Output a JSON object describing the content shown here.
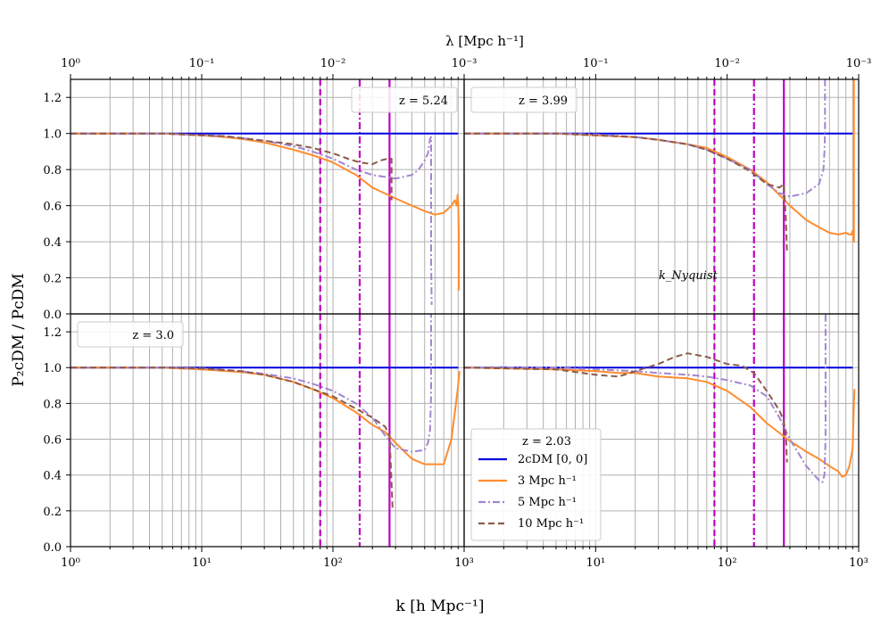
{
  "figure": {
    "xlabel": "k [h Mpc⁻¹]",
    "ylabel": "P₂cDM / PᴄDM",
    "top_xlabel": "λ [Mpc h⁻¹]",
    "knyquist_label": "k_Nyquist"
  },
  "chart_data": {
    "type": "line",
    "xscale": "log",
    "xlim": [
      1,
      1000
    ],
    "ylim": [
      0,
      1.3
    ],
    "xticks": [
      "10⁰",
      "10¹",
      "10²",
      "10³"
    ],
    "top_xticks": [
      "10⁰",
      "10⁻¹",
      "10⁻²",
      "10⁻³"
    ],
    "yticks": [
      "0.0",
      "0.2",
      "0.4",
      "0.6",
      "0.8",
      "1.0",
      "1.2"
    ],
    "grid": true,
    "vlines": [
      {
        "x": 80,
        "style": "dashed",
        "color": "#c000c0"
      },
      {
        "x": 160,
        "style": "dashdot",
        "color": "#c000c0"
      },
      {
        "x": 270,
        "style": "solid",
        "color": "#c000c0"
      }
    ],
    "legend": {
      "title": "z = 2.03",
      "entries": [
        {
          "label": "2cDM [0, 0]",
          "color": "#0000dd",
          "style": "solid"
        },
        {
          "label": "3 Mpc h⁻¹",
          "color": "#ff8c2e",
          "style": "solid"
        },
        {
          "label": "5 Mpc h⁻¹",
          "color": "#a285d0",
          "style": "dashdot"
        },
        {
          "label": "10 Mpc h⁻¹",
          "color": "#8c5a4a",
          "style": "dashed"
        }
      ]
    },
    "panels": [
      {
        "redshift_label": "z = 5.24",
        "series": [
          {
            "name": "2cDM [0, 0]",
            "x": [
              1,
              900
            ],
            "y": [
              1.0,
              1.0
            ]
          },
          {
            "name": "3 Mpc h⁻¹",
            "x": [
              1,
              5,
              10,
              15,
              20,
              30,
              50,
              70,
              100,
              150,
              200,
              300,
              400,
              500,
              600,
              700,
              800,
              850,
              880,
              890,
              900,
              910,
              910
            ],
            "y": [
              1.0,
              1.0,
              0.99,
              0.98,
              0.97,
              0.95,
              0.91,
              0.88,
              0.84,
              0.77,
              0.7,
              0.64,
              0.6,
              0.57,
              0.55,
              0.56,
              0.6,
              0.63,
              0.6,
              0.66,
              0.62,
              0.45,
              0.13
            ]
          },
          {
            "name": "5 Mpc h⁻¹",
            "x": [
              1,
              5,
              10,
              15,
              20,
              30,
              50,
              70,
              100,
              150,
              200,
              300,
              400,
              450,
              500,
              530,
              550,
              560,
              560,
              565
            ],
            "y": [
              1.0,
              1.0,
              0.99,
              0.985,
              0.975,
              0.96,
              0.93,
              0.9,
              0.86,
              0.8,
              0.77,
              0.75,
              0.77,
              0.8,
              0.85,
              0.89,
              0.97,
              0.98,
              0.3,
              0.05
            ]
          },
          {
            "name": "10 Mpc h⁻¹",
            "x": [
              1,
              5,
              10,
              15,
              20,
              30,
              50,
              70,
              100,
              130,
              160,
              200,
              230,
              260,
              280,
              280
            ],
            "y": [
              1.0,
              1.0,
              0.99,
              0.985,
              0.975,
              0.96,
              0.94,
              0.92,
              0.89,
              0.86,
              0.84,
              0.83,
              0.85,
              0.86,
              0.86,
              0.63
            ]
          }
        ]
      },
      {
        "redshift_label": "z = 3.99",
        "series": [
          {
            "name": "2cDM [0, 0]",
            "x": [
              1,
              900
            ],
            "y": [
              1.0,
              1.0
            ]
          },
          {
            "name": "3 Mpc h⁻¹",
            "x": [
              1,
              5,
              10,
              20,
              30,
              50,
              70,
              100,
              150,
              200,
              300,
              400,
              500,
              600,
              700,
              800,
              850,
              880,
              900,
              910,
              920,
              920
            ],
            "y": [
              1.0,
              1.0,
              0.99,
              0.98,
              0.965,
              0.94,
              0.92,
              0.87,
              0.8,
              0.73,
              0.6,
              0.52,
              0.48,
              0.45,
              0.44,
              0.45,
              0.44,
              0.44,
              0.46,
              0.43,
              0.4,
              1.3
            ]
          },
          {
            "name": "5 Mpc h⁻¹",
            "x": [
              1,
              5,
              10,
              20,
              30,
              50,
              70,
              100,
              150,
              200,
              250,
              300,
              400,
              500,
              540,
              550,
              555,
              555
            ],
            "y": [
              1.0,
              1.0,
              0.995,
              0.98,
              0.965,
              0.94,
              0.91,
              0.86,
              0.8,
              0.72,
              0.67,
              0.65,
              0.67,
              0.72,
              0.8,
              0.9,
              1.0,
              1.3
            ]
          },
          {
            "name": "10 Mpc h⁻¹",
            "x": [
              1,
              5,
              10,
              20,
              30,
              50,
              70,
              100,
              150,
              200,
              250,
              270,
              280,
              285
            ],
            "y": [
              1.0,
              1.0,
              0.99,
              0.98,
              0.965,
              0.94,
              0.91,
              0.86,
              0.79,
              0.72,
              0.7,
              0.72,
              0.52,
              0.35
            ]
          }
        ]
      },
      {
        "redshift_label": "z = 3.0",
        "series": [
          {
            "name": "2cDM [0, 0]",
            "x": [
              1,
              900
            ],
            "y": [
              1.0,
              1.0
            ]
          },
          {
            "name": "3 Mpc h⁻¹",
            "x": [
              1,
              5,
              10,
              20,
              30,
              50,
              70,
              100,
              150,
              200,
              250,
              300,
              400,
              500,
              600,
              700,
              800,
              850,
              900,
              920
            ],
            "y": [
              1.0,
              1.0,
              0.99,
              0.975,
              0.96,
              0.92,
              0.88,
              0.83,
              0.75,
              0.68,
              0.64,
              0.58,
              0.49,
              0.46,
              0.46,
              0.46,
              0.6,
              0.75,
              0.9,
              0.98
            ]
          },
          {
            "name": "5 Mpc h⁻¹",
            "x": [
              1,
              5,
              10,
              20,
              30,
              50,
              70,
              100,
              150,
              200,
              250,
              300,
              400,
              500,
              530,
              550,
              560,
              560
            ],
            "y": [
              1.0,
              1.0,
              0.995,
              0.98,
              0.965,
              0.94,
              0.91,
              0.87,
              0.8,
              0.72,
              0.62,
              0.55,
              0.53,
              0.54,
              0.58,
              0.65,
              0.85,
              1.3
            ]
          },
          {
            "name": "10 Mpc h⁻¹",
            "x": [
              1,
              5,
              10,
              20,
              30,
              50,
              70,
              100,
              150,
              200,
              250,
              270,
              280,
              285
            ],
            "y": [
              1.0,
              1.0,
              0.995,
              0.98,
              0.96,
              0.92,
              0.88,
              0.84,
              0.77,
              0.72,
              0.67,
              0.62,
              0.35,
              0.2
            ]
          }
        ]
      },
      {
        "redshift_label": "z = 2.03",
        "series": [
          {
            "name": "2cDM [0, 0]",
            "x": [
              1,
              900
            ],
            "y": [
              1.0,
              1.0
            ]
          },
          {
            "name": "3 Mpc h⁻¹",
            "x": [
              1,
              5,
              10,
              15,
              20,
              30,
              50,
              70,
              100,
              150,
              200,
              300,
              400,
              500,
              600,
              700,
              750,
              800,
              850,
              900,
              920,
              930
            ],
            "y": [
              1.0,
              0.99,
              0.98,
              0.97,
              0.97,
              0.95,
              0.94,
              0.92,
              0.87,
              0.78,
              0.69,
              0.59,
              0.53,
              0.49,
              0.45,
              0.42,
              0.39,
              0.4,
              0.45,
              0.55,
              0.8,
              0.88
            ]
          },
          {
            "name": "5 Mpc h⁻¹",
            "x": [
              1,
              5,
              10,
              20,
              30,
              50,
              70,
              100,
              150,
              200,
              250,
              300,
              400,
              500,
              530,
              550,
              560,
              560
            ],
            "y": [
              1.0,
              1.0,
              0.99,
              0.98,
              0.97,
              0.96,
              0.95,
              0.93,
              0.9,
              0.84,
              0.72,
              0.6,
              0.45,
              0.37,
              0.36,
              0.4,
              0.6,
              1.3
            ]
          },
          {
            "name": "10 Mpc h⁻¹",
            "x": [
              1,
              5,
              10,
              15,
              20,
              30,
              40,
              50,
              70,
              100,
              130,
              160,
              200,
              250,
              270,
              280,
              285
            ],
            "y": [
              1.0,
              0.99,
              0.96,
              0.95,
              0.98,
              1.02,
              1.06,
              1.08,
              1.06,
              1.02,
              1.01,
              0.97,
              0.87,
              0.76,
              0.7,
              0.62,
              0.47
            ]
          }
        ]
      }
    ]
  }
}
